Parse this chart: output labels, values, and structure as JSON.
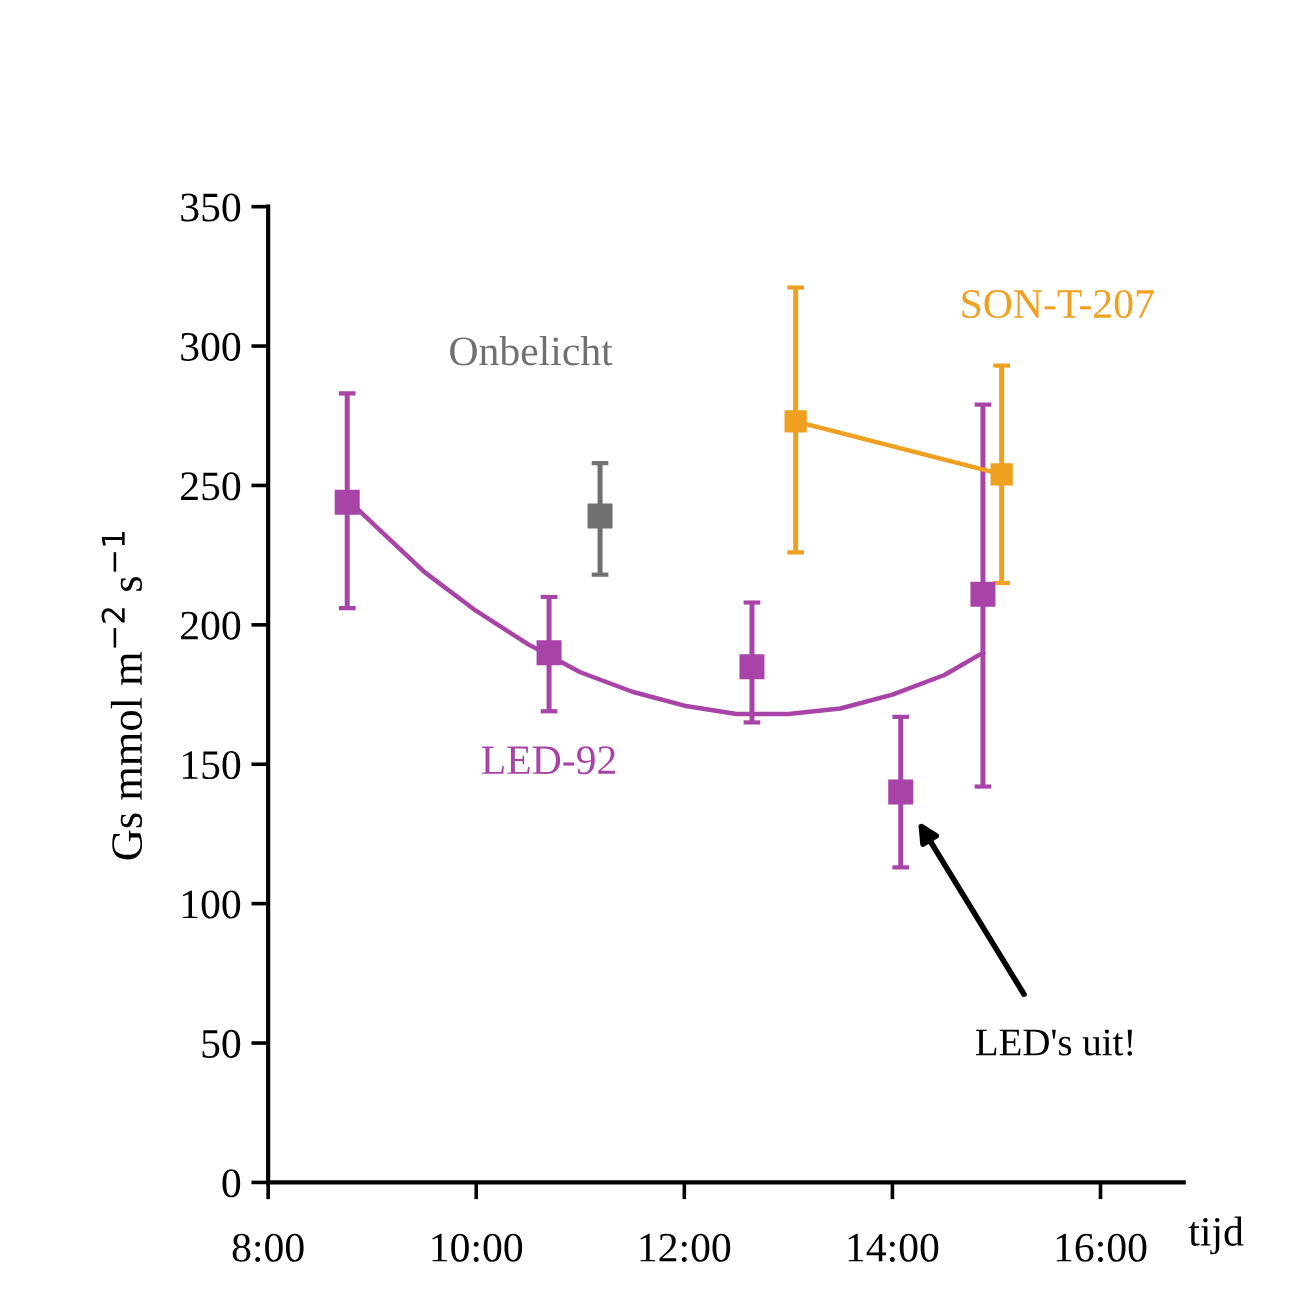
{
  "chart_data": {
    "type": "scatter",
    "xlabel": "tijd",
    "ylabel": "Gs mmol m$^{−2}$ s$^{−1}$",
    "xlim": [
      8,
      16.8
    ],
    "ylim": [
      0,
      350
    ],
    "xticks": [
      {
        "value": 8,
        "label": "8:00"
      },
      {
        "value": 10,
        "label": "10:00"
      },
      {
        "value": 12,
        "label": "12:00"
      },
      {
        "value": 14,
        "label": "14:00"
      },
      {
        "value": 16,
        "label": "16:00"
      }
    ],
    "yticks": [
      0,
      50,
      100,
      150,
      200,
      250,
      300,
      350
    ],
    "grid": false,
    "legend": false,
    "marker": "square",
    "series": [
      {
        "name": "LED-92",
        "color": "#a844a8",
        "x": [
          8.76,
          10.7,
          12.65,
          14.08,
          14.87
        ],
        "values": [
          244,
          190,
          185,
          140,
          211
        ],
        "errors": [
          [
            206,
            283
          ],
          [
            169,
            210
          ],
          [
            165,
            208
          ],
          [
            113,
            167
          ],
          [
            142,
            279
          ]
        ]
      },
      {
        "type": "line",
        "color": "#a844a8",
        "marker": "none",
        "x": [
          8.76,
          9.5,
          10,
          10.5,
          11,
          11.5,
          12,
          12.5,
          13,
          13.5,
          14,
          14.5,
          14.87
        ],
        "values": [
          245,
          219,
          205,
          193,
          183,
          176,
          171,
          168,
          168,
          170,
          175,
          182,
          190
        ]
      },
      {
        "name": "Onbelicht",
        "color": "#707070",
        "x": [
          11.19
        ],
        "values": [
          239
        ],
        "errors": [
          [
            218,
            258
          ]
        ]
      },
      {
        "name": "SON-T-207",
        "type": "line",
        "color": "#f0a020",
        "x": [
          13.07,
          15.05
        ],
        "values": [
          273,
          254
        ],
        "errors": [
          [
            226,
            321
          ],
          [
            215,
            293
          ]
        ]
      }
    ],
    "annotations": [
      "LED's uit!"
    ]
  }
}
